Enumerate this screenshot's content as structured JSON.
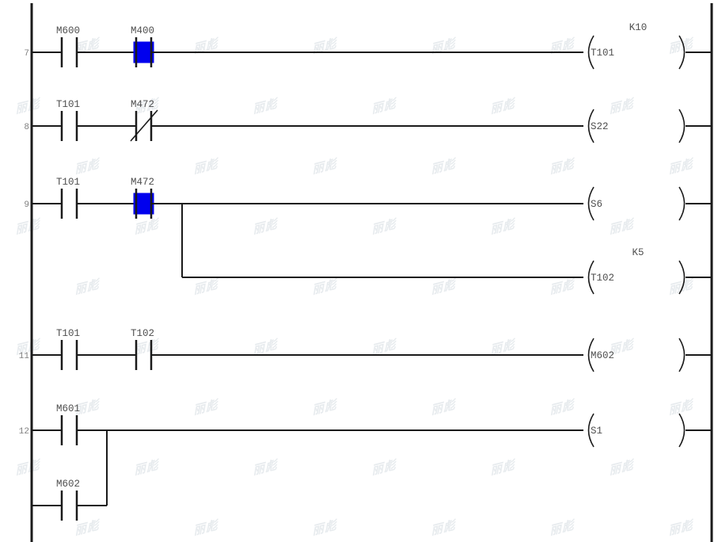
{
  "colors": {
    "line": "#1a1a1a",
    "active_contact_fill": "#0000ee",
    "label_text": "#4f4f4f",
    "rung_number_text": "#808080",
    "watermark_text": "#e7ebee"
  },
  "watermark": {
    "text": "丽彪"
  },
  "rungs": {
    "r7": {
      "number": "7",
      "contact1_label": "M600",
      "contact2_label": "M400",
      "coil_label": "T101",
      "coil_param": "K10"
    },
    "r8": {
      "number": "8",
      "contact1_label": "T101",
      "contact2_label": "M472",
      "coil_label": "S22"
    },
    "r9": {
      "number": "9",
      "contact1_label": "T101",
      "contact2_label": "M472",
      "coil_label": "S6"
    },
    "r9b": {
      "coil_label": "T102",
      "coil_param": "K5"
    },
    "r11": {
      "number": "11",
      "contact1_label": "T101",
      "contact2_label": "T102",
      "coil_label": "M602"
    },
    "r12": {
      "number": "12",
      "contact1_label": "M601",
      "parallel_contact_label": "M602",
      "coil_label": "S1"
    }
  }
}
